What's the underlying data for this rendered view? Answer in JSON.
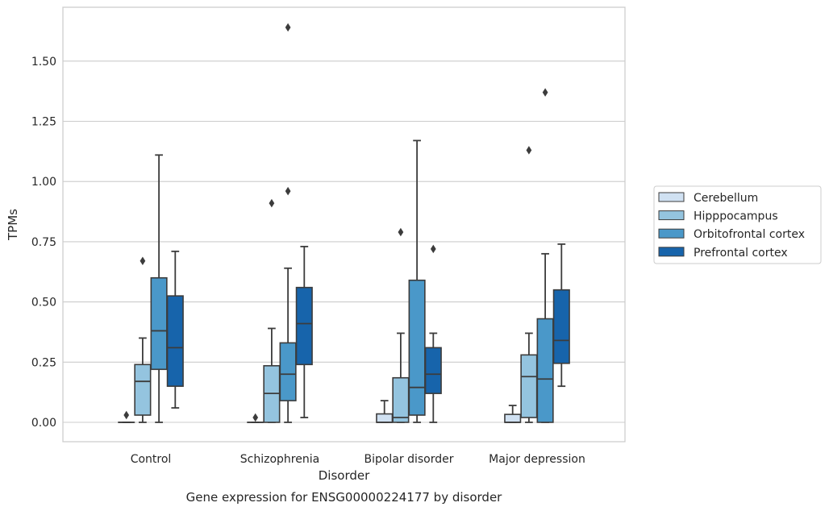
{
  "chart_data": {
    "type": "box",
    "title": "",
    "caption": "Gene expression for ENSG00000224177 by disorder",
    "xlabel": "Disorder",
    "ylabel": "TPMs",
    "ylim": [
      -0.08,
      1.73
    ],
    "yticks": [
      0.0,
      0.25,
      0.5,
      0.75,
      1.0,
      1.25,
      1.5
    ],
    "ytick_labels": [
      "0.00",
      "0.25",
      "0.50",
      "0.75",
      "1.00",
      "1.25",
      "1.50"
    ],
    "grid": true,
    "legend_position": "right",
    "categories": [
      "Control",
      "Schizophrenia",
      "Bipolar disorder",
      "Major depression"
    ],
    "series": [
      {
        "name": "Cerebellum",
        "color": "#d0e1f2",
        "boxes": [
          {
            "whislo": 0.0,
            "q1": 0.0,
            "med": 0.0,
            "q3": 0.0,
            "whishi": 0.0,
            "fliers": [
              0.03
            ]
          },
          {
            "whislo": 0.0,
            "q1": 0.0,
            "med": 0.0,
            "q3": 0.0,
            "whishi": 0.0,
            "fliers": [
              0.02
            ]
          },
          {
            "whislo": 0.0,
            "q1": 0.0,
            "med": 0.0,
            "q3": 0.035,
            "whishi": 0.09,
            "fliers": []
          },
          {
            "whislo": 0.0,
            "q1": 0.0,
            "med": 0.0,
            "q3": 0.033,
            "whishi": 0.07,
            "fliers": []
          }
        ]
      },
      {
        "name": "Hipppocampus",
        "color": "#94c4df",
        "boxes": [
          {
            "whislo": 0.0,
            "q1": 0.03,
            "med": 0.17,
            "q3": 0.24,
            "whishi": 0.35,
            "fliers": [
              0.67
            ]
          },
          {
            "whislo": 0.0,
            "q1": 0.0,
            "med": 0.12,
            "q3": 0.235,
            "whishi": 0.39,
            "fliers": [
              0.91
            ]
          },
          {
            "whislo": 0.0,
            "q1": 0.0,
            "med": 0.02,
            "q3": 0.185,
            "whishi": 0.37,
            "fliers": [
              0.79
            ]
          },
          {
            "whislo": 0.0,
            "q1": 0.02,
            "med": 0.19,
            "q3": 0.28,
            "whishi": 0.37,
            "fliers": [
              1.13
            ]
          }
        ]
      },
      {
        "name": "Orbitofrontal cortex",
        "color": "#4a98c9",
        "boxes": [
          {
            "whislo": 0.0,
            "q1": 0.22,
            "med": 0.38,
            "q3": 0.6,
            "whishi": 1.11,
            "fliers": []
          },
          {
            "whislo": 0.0,
            "q1": 0.09,
            "med": 0.2,
            "q3": 0.33,
            "whishi": 0.64,
            "fliers": [
              0.96,
              1.64
            ]
          },
          {
            "whislo": 0.0,
            "q1": 0.03,
            "med": 0.145,
            "q3": 0.59,
            "whishi": 1.17,
            "fliers": []
          },
          {
            "whislo": 0.0,
            "q1": 0.0,
            "med": 0.18,
            "q3": 0.43,
            "whishi": 0.7,
            "fliers": [
              1.37
            ]
          }
        ]
      },
      {
        "name": "Prefrontal cortex",
        "color": "#1764ab",
        "boxes": [
          {
            "whislo": 0.06,
            "q1": 0.15,
            "med": 0.31,
            "q3": 0.525,
            "whishi": 0.71,
            "fliers": []
          },
          {
            "whislo": 0.02,
            "q1": 0.24,
            "med": 0.41,
            "q3": 0.56,
            "whishi": 0.73,
            "fliers": []
          },
          {
            "whislo": 0.0,
            "q1": 0.12,
            "med": 0.2,
            "q3": 0.31,
            "whishi": 0.37,
            "fliers": [
              0.72
            ]
          },
          {
            "whislo": 0.15,
            "q1": 0.245,
            "med": 0.34,
            "q3": 0.55,
            "whishi": 0.74,
            "fliers": []
          }
        ]
      }
    ]
  }
}
